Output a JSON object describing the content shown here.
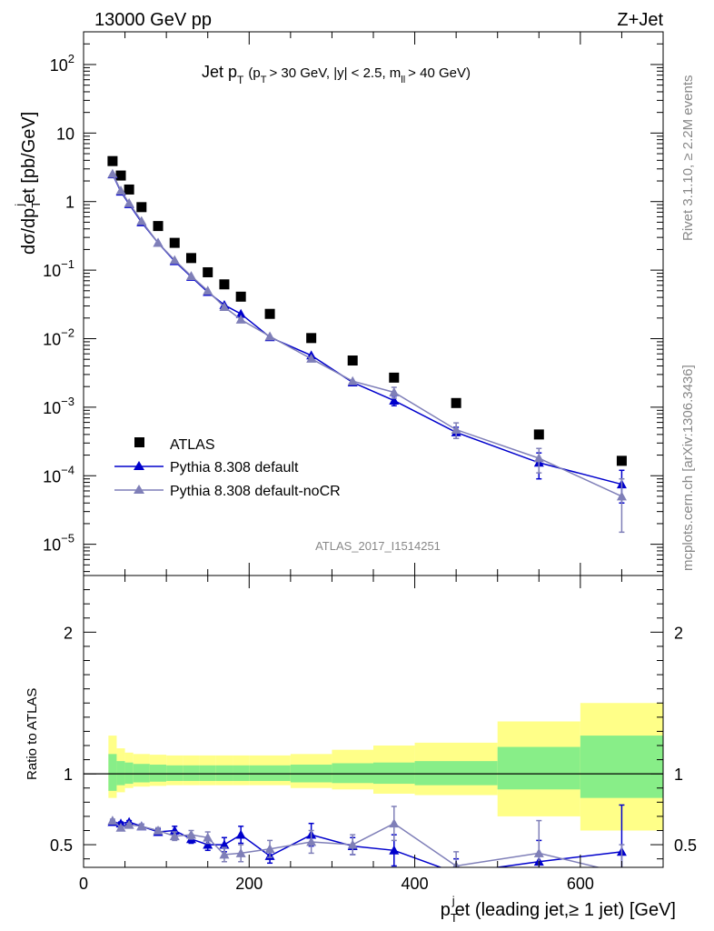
{
  "header": {
    "left": "13000 GeV pp",
    "right": "Z+Jet"
  },
  "side_labels": {
    "rivet": "Rivet 3.1.10, ≥ 2.2M events",
    "mcplots": "mcplots.cern.ch [arXiv:1306.3436]"
  },
  "chart_data": [
    {
      "type": "scatter",
      "title": "Jet p_T (p_T > 30 GeV, |y| < 2.5, m_ll > 40 GeV)",
      "title_parts": {
        "main": "Jet p",
        "sub_T": "T",
        "cuts_open": "(p",
        "cuts_mid": "> 30 GeV, |y| < 2.5, m",
        "sub_ll": "ll",
        "cuts_close": "> 40 GeV)"
      },
      "ylabel": "dσ/dp_T^jet [pb/GeV]",
      "ylabel_parts": {
        "a": "dσ/dp",
        "sub": "T",
        "sup": "j",
        "b": "et [pb/GeV]"
      },
      "y_scale": "log",
      "ylim": [
        3.5e-06,
        300
      ],
      "xlim": [
        0,
        700
      ],
      "y_ticks": [
        {
          "label": "10",
          "exp": "2"
        },
        {
          "label": "10",
          "exp": ""
        },
        {
          "label": "1",
          "exp": ""
        },
        {
          "label": "10",
          "exp": "−1"
        },
        {
          "label": "10",
          "exp": "−2"
        },
        {
          "label": "10",
          "exp": "−3"
        },
        {
          "label": "10",
          "exp": "−4"
        },
        {
          "label": "10",
          "exp": "−5"
        }
      ],
      "analysis_label": "ATLAS_2017_I1514251",
      "legend_position": "lower-left",
      "series": [
        {
          "name": "ATLAS",
          "color": "#000000",
          "marker": "square",
          "x": [
            35,
            45,
            55,
            70,
            90,
            110,
            130,
            150,
            170,
            190,
            225,
            275,
            325,
            375,
            450,
            550,
            650
          ],
          "y": [
            3.9,
            2.4,
            1.5,
            0.83,
            0.44,
            0.25,
            0.15,
            0.093,
            0.062,
            0.041,
            0.023,
            0.0102,
            0.0048,
            0.0027,
            0.00115,
            0.0004,
            0.000165
          ]
        },
        {
          "name": "Pythia 8.308 default",
          "color": "#0000cc",
          "marker": "triangle",
          "x": [
            35,
            45,
            55,
            70,
            90,
            110,
            130,
            150,
            170,
            190,
            225,
            275,
            325,
            375,
            450,
            550,
            650
          ],
          "y": [
            2.5,
            1.4,
            0.92,
            0.5,
            0.25,
            0.135,
            0.08,
            0.048,
            0.031,
            0.023,
            0.0105,
            0.0057,
            0.0023,
            0.00125,
            0.00043,
            0.000155,
            7.5e-05
          ],
          "yerr_lo": [
            0,
            0,
            0,
            0,
            0,
            0,
            0,
            0,
            0,
            0,
            0,
            0,
            0,
            0.0002,
            8e-05,
            6.5e-05,
            3.5e-05
          ],
          "yerr_hi": [
            0,
            0,
            0,
            0,
            0,
            0,
            0,
            0,
            0,
            0,
            0,
            0,
            0,
            0.0002,
            8e-05,
            6e-05,
            4.5e-05
          ]
        },
        {
          "name": "Pythia 8.308 default-noCR",
          "color": "#7f7fb8",
          "marker": "triangle",
          "x": [
            35,
            45,
            55,
            70,
            90,
            110,
            130,
            150,
            170,
            190,
            225,
            275,
            325,
            375,
            450,
            550,
            650
          ],
          "y": [
            2.55,
            1.45,
            0.95,
            0.52,
            0.25,
            0.14,
            0.082,
            0.05,
            0.029,
            0.019,
            0.0108,
            0.0051,
            0.0024,
            0.00165,
            0.00047,
            0.00018,
            5e-05
          ],
          "yerr_lo": [
            0,
            0,
            0,
            0,
            0,
            0,
            0,
            0,
            0,
            0,
            0,
            0,
            0,
            0.0003,
            0.00012,
            7e-05,
            3.5e-05
          ],
          "yerr_hi": [
            0,
            0,
            0,
            0,
            0,
            0,
            0,
            0,
            0,
            0,
            0,
            0,
            0,
            0.0003,
            0.00012,
            7e-05,
            4e-05
          ]
        }
      ]
    },
    {
      "type": "scatter",
      "ylabel": "Ratio to ATLAS",
      "xlabel": "p_T^jet (leading jet,≥ 1 jet) [GeV]",
      "xlabel_parts": {
        "a": "p",
        "sub": "T",
        "sup": "j",
        "b": "et (leading jet,≥ 1 jet) [GeV]"
      },
      "xlim": [
        0,
        700
      ],
      "ylim": [
        0.34,
        2.4
      ],
      "x_ticks": [
        "0",
        "200",
        "400",
        "600"
      ],
      "y_ticks": [
        "0.5",
        "1",
        "2"
      ],
      "uncertainty_bands": {
        "edges": [
          30,
          40,
          50,
          60,
          80,
          100,
          120,
          140,
          160,
          180,
          200,
          250,
          300,
          350,
          400,
          500,
          600,
          700
        ],
        "stat_lo": [
          0.88,
          0.92,
          0.93,
          0.94,
          0.945,
          0.95,
          0.95,
          0.95,
          0.95,
          0.95,
          0.95,
          0.94,
          0.935,
          0.93,
          0.92,
          0.89,
          0.83
        ],
        "stat_hi": [
          1.14,
          1.09,
          1.08,
          1.07,
          1.065,
          1.06,
          1.06,
          1.06,
          1.06,
          1.06,
          1.06,
          1.065,
          1.075,
          1.08,
          1.09,
          1.19,
          1.27
        ],
        "tot_lo": [
          0.83,
          0.87,
          0.9,
          0.91,
          0.915,
          0.92,
          0.92,
          0.92,
          0.92,
          0.92,
          0.92,
          0.9,
          0.89,
          0.86,
          0.85,
          0.7,
          0.6
        ],
        "tot_hi": [
          1.27,
          1.18,
          1.15,
          1.14,
          1.135,
          1.13,
          1.13,
          1.13,
          1.13,
          1.13,
          1.13,
          1.14,
          1.17,
          1.2,
          1.22,
          1.37,
          1.5
        ],
        "stat_color": "#88ee88",
        "tot_color": "#ffff88"
      },
      "series": [
        {
          "name": "Pythia 8.308 default",
          "color": "#0000cc",
          "x": [
            35,
            45,
            55,
            70,
            90,
            110,
            130,
            150,
            170,
            190,
            225,
            275,
            325,
            375,
            450,
            550,
            650
          ],
          "y": [
            0.66,
            0.65,
            0.66,
            0.63,
            0.59,
            0.6,
            0.54,
            0.5,
            0.5,
            0.57,
            0.42,
            0.57,
            0.49,
            0.46,
            0.3,
            0.38,
            0.45
          ],
          "yerr_lo": [
            0.01,
            0.01,
            0.01,
            0.015,
            0.02,
            0.03,
            0.03,
            0.04,
            0.05,
            0.06,
            0.05,
            0.08,
            0.06,
            0.11,
            0.1,
            0.15,
            0.3
          ],
          "yerr_hi": [
            0.01,
            0.01,
            0.01,
            0.015,
            0.02,
            0.03,
            0.03,
            0.04,
            0.05,
            0.06,
            0.05,
            0.08,
            0.06,
            0.11,
            0.1,
            0.15,
            0.33
          ]
        },
        {
          "name": "Pythia 8.308 default-noCR",
          "color": "#7f7fb8",
          "x": [
            35,
            45,
            55,
            70,
            90,
            110,
            130,
            150,
            170,
            190,
            225,
            275,
            325,
            375,
            450,
            550,
            650
          ],
          "y": [
            0.67,
            0.62,
            0.64,
            0.63,
            0.6,
            0.56,
            0.57,
            0.55,
            0.43,
            0.44,
            0.47,
            0.52,
            0.5,
            0.65,
            0.35,
            0.44,
            0.3
          ],
          "yerr_lo": [
            0.01,
            0.01,
            0.01,
            0.015,
            0.02,
            0.03,
            0.03,
            0.04,
            0.05,
            0.06,
            0.06,
            0.08,
            0.07,
            0.12,
            0.1,
            0.23,
            0.2
          ],
          "yerr_hi": [
            0.01,
            0.01,
            0.01,
            0.015,
            0.02,
            0.03,
            0.03,
            0.04,
            0.05,
            0.06,
            0.06,
            0.08,
            0.07,
            0.12,
            0.1,
            0.23,
            0.2
          ]
        }
      ]
    }
  ]
}
